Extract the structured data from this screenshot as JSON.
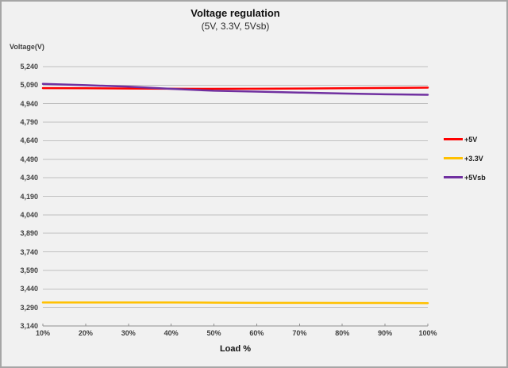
{
  "chart_data": {
    "type": "line",
    "title": "Voltage regulation",
    "subtitle": "(5V, 3.3V, 5Vsb)",
    "xlabel": "Load %",
    "ylabel": "Voltage(V)",
    "categories": [
      "10%",
      "20%",
      "30%",
      "40%",
      "50%",
      "60%",
      "70%",
      "80%",
      "90%",
      "100%"
    ],
    "series": [
      {
        "name": "+5V",
        "color": "#ff0000",
        "values": [
          5066,
          5065,
          5063,
          5061,
          5060,
          5061,
          5063,
          5065,
          5067,
          5070
        ]
      },
      {
        "name": "+3.3V",
        "color": "#ffc000",
        "values": [
          3330,
          3330,
          3330,
          3330,
          3329,
          3327,
          3327,
          3326,
          3326,
          3325
        ]
      },
      {
        "name": "+5Vsb",
        "color": "#7030a0",
        "values": [
          5100,
          5090,
          5078,
          5060,
          5045,
          5038,
          5030,
          5022,
          5016,
          5012
        ]
      }
    ],
    "ylim": [
      3140,
      5240
    ],
    "y_tick_step": 150,
    "y_unit": "mV shown as thousands-separated numbers",
    "grid": true,
    "legend_position": "right"
  },
  "colors": {
    "background": "#f1f1f1",
    "border": "#a6a6a6",
    "gridline": "#c0c0c0",
    "axis_line": "#8f8f8f",
    "tick_text": "#404040",
    "title_text": "#111111"
  }
}
